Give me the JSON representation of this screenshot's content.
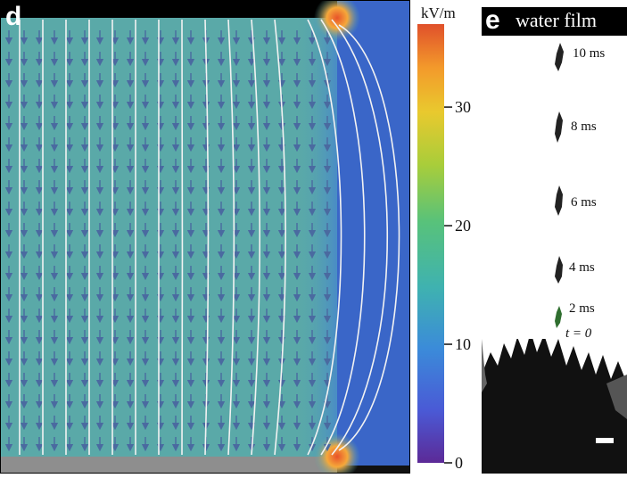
{
  "panel_d": {
    "label": "d",
    "field_color": "#5aa9a8",
    "edge_color": "#3b70c4",
    "hotspot_color": "#e8532a",
    "arrow_color": "#4a6aa0",
    "streamline_color": "#f2f2f2"
  },
  "colorbar": {
    "unit": "kV/m",
    "ticks": [
      "30",
      "20",
      "10",
      "0"
    ],
    "range": [
      0,
      37
    ],
    "colors": [
      "#5c2a97",
      "#4a5ad6",
      "#3b8bd9",
      "#3fb2b0",
      "#58c27a",
      "#a9cd3a",
      "#e9c92e",
      "#f39a2b",
      "#e0502b"
    ]
  },
  "panel_e": {
    "label": "e",
    "title": "water film",
    "time_labels": [
      "10 ms",
      "8 ms",
      "6 ms",
      "4 ms",
      "2 ms",
      "t = 0"
    ]
  }
}
